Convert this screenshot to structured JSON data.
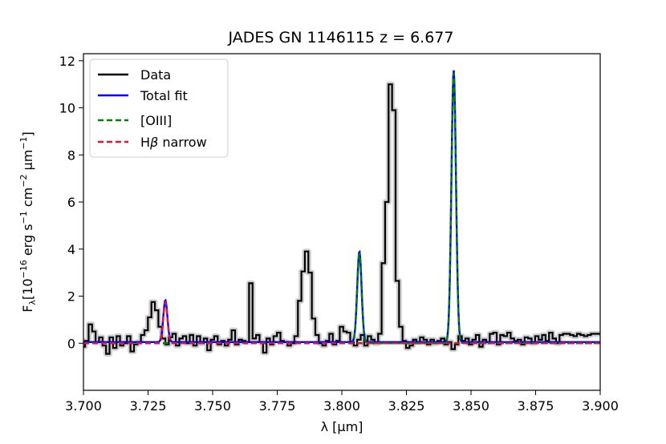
{
  "chart_data": {
    "type": "line",
    "title": "JADES GN 1146115 z = 6.677",
    "xlabel": "λ [μm]",
    "ylabel": {
      "main": "F",
      "sub": "λ",
      "bracket_open": "[10",
      "exp1": "−16",
      "mid1": " erg s",
      "exp2": "−1",
      "mid2": " cm",
      "exp3": "−2",
      "mid3": " μm",
      "exp4": "−1",
      "bracket_close": "]"
    },
    "xlim": [
      3.7,
      3.9
    ],
    "ylim": [
      -2.0,
      12.3
    ],
    "xticks": [
      3.7,
      3.725,
      3.75,
      3.775,
      3.8,
      3.825,
      3.85,
      3.875,
      3.9
    ],
    "xtick_labels": [
      "3.700",
      "3.725",
      "3.750",
      "3.775",
      "3.800",
      "3.825",
      "3.850",
      "3.875",
      "3.900"
    ],
    "yticks": [
      0,
      2,
      4,
      6,
      8,
      10,
      12
    ],
    "ytick_labels": [
      "0",
      "2",
      "4",
      "6",
      "8",
      "10",
      "12"
    ],
    "grid": false,
    "legend": {
      "position": "top-left",
      "entries": [
        {
          "label": "Data",
          "color": "#000000",
          "style": "solid"
        },
        {
          "label": "Total fit",
          "color": "#0000ff",
          "style": "solid"
        },
        {
          "label": "[OIII]",
          "color": "#008000",
          "style": "dashed"
        },
        {
          "label_main": "H",
          "label_italic": "β",
          "label_rest": " narrow",
          "color": "#dc143c",
          "style": "dashed"
        }
      ]
    },
    "series": [
      {
        "name": "Data",
        "kind": "step",
        "color": "#000000",
        "error_color": "#c8c8c8",
        "x": [
          3.7,
          3.7013,
          3.7027,
          3.704,
          3.7054,
          3.7067,
          3.7081,
          3.7094,
          3.7108,
          3.7121,
          3.7135,
          3.7148,
          3.7162,
          3.7175,
          3.7189,
          3.7202,
          3.7216,
          3.7229,
          3.7243,
          3.7256,
          3.727,
          3.7283,
          3.7297,
          3.731,
          3.7324,
          3.7337,
          3.7351,
          3.7364,
          3.7378,
          3.7391,
          3.7405,
          3.7418,
          3.7432,
          3.7445,
          3.7459,
          3.7472,
          3.7486,
          3.7499,
          3.7513,
          3.7526,
          3.754,
          3.7553,
          3.7567,
          3.758,
          3.7594,
          3.7607,
          3.7621,
          3.7634,
          3.7648,
          3.7661,
          3.7675,
          3.7688,
          3.7702,
          3.7715,
          3.7729,
          3.7742,
          3.7756,
          3.7769,
          3.7783,
          3.7796,
          3.781,
          3.7823,
          3.7837,
          3.785,
          3.7864,
          3.7877,
          3.7891,
          3.7904,
          3.7918,
          3.7931,
          3.7945,
          3.7958,
          3.7972,
          3.7985,
          3.7999,
          3.8012,
          3.8026,
          3.8039,
          3.8053,
          3.8066,
          3.808,
          3.8093,
          3.8107,
          3.812,
          3.8134,
          3.8147,
          3.8161,
          3.8174,
          3.8188,
          3.8201,
          3.8215,
          3.8228,
          3.8242,
          3.8255,
          3.8269,
          3.8282,
          3.8296,
          3.8309,
          3.8323,
          3.8336,
          3.835,
          3.8363,
          3.8377,
          3.839,
          3.8404,
          3.8417,
          3.8431,
          3.8444,
          3.8458,
          3.8471,
          3.8485,
          3.8498,
          3.8512,
          3.8525,
          3.8539,
          3.8552,
          3.8566,
          3.8579,
          3.8593,
          3.8606,
          3.862,
          3.8633,
          3.8647,
          3.866,
          3.8674,
          3.8687,
          3.8701,
          3.8714,
          3.8728,
          3.8741,
          3.8755,
          3.8768,
          3.8782,
          3.8795,
          3.8809,
          3.8822,
          3.8836,
          3.8849,
          3.8863,
          3.8876,
          3.889,
          3.8903,
          3.8917,
          3.893,
          3.8944,
          3.8957,
          3.8971,
          3.8984,
          3.9
        ],
        "y": [
          -0.15,
          0.1,
          0.8,
          0.5,
          0.05,
          0.25,
          -0.1,
          -0.45,
          0.25,
          -0.2,
          0.3,
          -0.1,
          0.0,
          0.3,
          -0.35,
          -0.05,
          0.05,
          0.35,
          0.55,
          1.1,
          1.75,
          1.4,
          0.7,
          0.2,
          -0.05,
          0.25,
          0.4,
          -0.1,
          0.2,
          0.3,
          0.0,
          0.35,
          -0.1,
          0.3,
          0.0,
          0.2,
          -0.3,
          0.15,
          0.3,
          -0.05,
          0.1,
          -0.1,
          0.15,
          0.55,
          -0.05,
          0.15,
          0.1,
          0.05,
          2.55,
          0.2,
          0.35,
          0.05,
          -0.4,
          0.2,
          -0.05,
          0.3,
          0.45,
          0.1,
          0.05,
          -0.1,
          0.0,
          0.3,
          1.8,
          3.05,
          3.9,
          3.0,
          1.05,
          0.35,
          0.0,
          -0.1,
          0.1,
          0.4,
          -0.05,
          0.1,
          0.7,
          0.5,
          0.45,
          0.05,
          -0.1,
          0.15,
          0.35,
          -0.1,
          0.3,
          0.15,
          0.0,
          0.4,
          3.4,
          6.0,
          11.0,
          9.9,
          2.65,
          0.7,
          0.1,
          -0.2,
          -0.1,
          0.15,
          0.05,
          0.25,
          0.15,
          -0.05,
          0.15,
          0.0,
          0.1,
          0.2,
          -0.05,
          0.05,
          -0.25,
          -0.05,
          0.3,
          0.1,
          0.2,
          -0.05,
          0.15,
          0.35,
          -0.15,
          0.15,
          0.05,
          0.4,
          0.45,
          -0.05,
          0.35,
          0.3,
          0.45,
          0.2,
          0.1,
          0.15,
          -0.05,
          0.25,
          0.2,
          0.0,
          0.3,
          0.15,
          0.35,
          0.1,
          0.45,
          0.2,
          0.0,
          0.35,
          0.4,
          0.4,
          0.35,
          0.3,
          0.4,
          0.35,
          0.3,
          0.35,
          0.4,
          0.4,
          0.4
        ]
      },
      {
        "name": "Total fit",
        "kind": "gaussians",
        "color": "#0000ff",
        "baseline": 0.05,
        "lines": [
          {
            "center": 3.7317,
            "amp": 1.78,
            "sigma": 0.0008
          },
          {
            "center": 3.8068,
            "amp": 3.85,
            "sigma": 0.00085
          },
          {
            "center": 3.8433,
            "amp": 11.55,
            "sigma": 0.00088
          }
        ]
      },
      {
        "name": "[OIII]",
        "kind": "gaussians",
        "color": "#008000",
        "baseline": 0.0,
        "lines": [
          {
            "center": 3.8068,
            "amp": 3.8,
            "sigma": 0.00085
          },
          {
            "center": 3.8433,
            "amp": 11.5,
            "sigma": 0.00088
          }
        ]
      },
      {
        "name": "Hβ narrow",
        "kind": "gaussians",
        "color": "#dc143c",
        "baseline": 0.0,
        "lines": [
          {
            "center": 3.7317,
            "amp": 1.75,
            "sigma": 0.0008
          }
        ]
      }
    ]
  }
}
